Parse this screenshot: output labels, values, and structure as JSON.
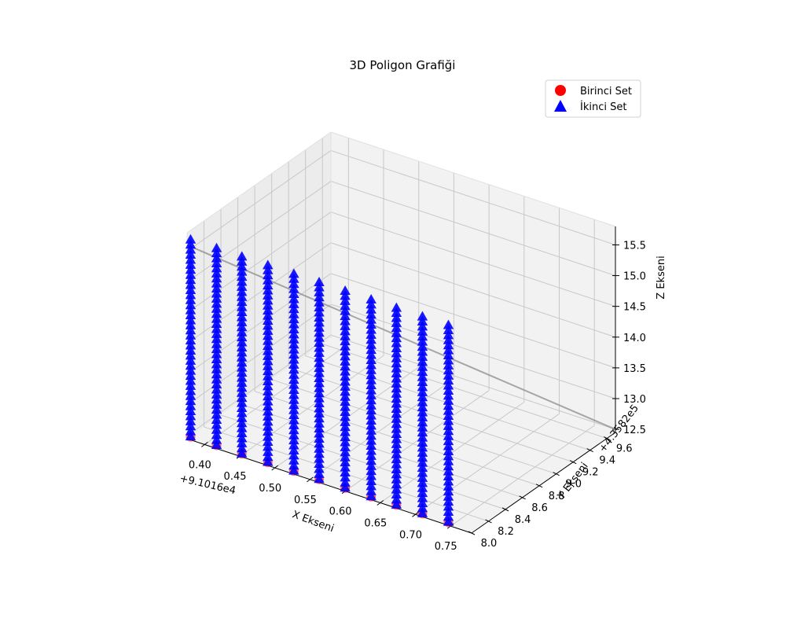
{
  "chart_data": {
    "type": "scatter",
    "projection": "3d",
    "title": "3D Poligon Grafiği",
    "xlabel": "X Ekseni",
    "ylabel": "Y Ekseni",
    "zlabel": "Z Ekseni",
    "x_offset_label": "+9.1016e4",
    "y_offset_label": "+4.3582e5",
    "x_ticks": [
      "0.40",
      "0.45",
      "0.50",
      "0.55",
      "0.60",
      "0.65",
      "0.70",
      "0.75"
    ],
    "y_ticks": [
      "8.0",
      "8.2",
      "8.4",
      "8.6",
      "8.8",
      "9.0",
      "9.2",
      "9.4",
      "9.6"
    ],
    "z_ticks": [
      "12.5",
      "13.0",
      "13.5",
      "14.0",
      "14.5",
      "15.0",
      "15.5"
    ],
    "xlim": [
      0.375,
      0.78
    ],
    "ylim": [
      8.0,
      9.7
    ],
    "zlim": [
      12.45,
      15.8
    ],
    "grid": true,
    "legend_position": "top-right",
    "series": [
      {
        "name": "Birinci Set",
        "marker": "circle",
        "color": "#ff0000",
        "x": [
          0.38,
          0.417,
          0.453,
          0.49,
          0.527,
          0.563,
          0.6,
          0.637,
          0.673,
          0.71,
          0.747
        ],
        "y": [
          8.0,
          8.0,
          8.0,
          8.0,
          8.0,
          8.0,
          8.0,
          8.0,
          8.0,
          8.0,
          8.0
        ],
        "z": [
          12.5,
          12.5,
          12.5,
          12.5,
          12.5,
          12.5,
          12.5,
          12.5,
          12.5,
          12.5,
          12.5
        ]
      },
      {
        "name": "İkinci Set",
        "marker": "triangle",
        "color": "#0000ff",
        "x": [
          0.38,
          0.417,
          0.453,
          0.49,
          0.527,
          0.563,
          0.6,
          0.637,
          0.673,
          0.71,
          0.747
        ],
        "y": [
          8.0,
          8.0,
          8.0,
          8.0,
          8.0,
          8.0,
          8.0,
          8.0,
          8.0,
          8.0,
          8.0
        ],
        "z_range": [
          12.5,
          15.7
        ]
      }
    ]
  }
}
